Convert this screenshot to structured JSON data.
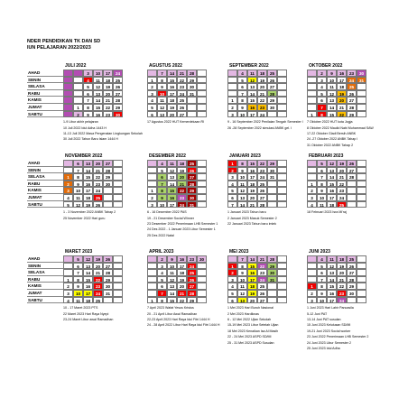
{
  "header": {
    "line1": "NDER PENDIDIKAN TK DAN SD",
    "line2": "IUN PELAJARAN  2022/2023"
  },
  "days": [
    "AHAD",
    "SENIN",
    "SELASA",
    "RABU",
    "KAMIS",
    "JUMAT",
    "SABTU"
  ],
  "colors": {
    "w": "#ffffff",
    "s": "#e3b7e3",
    "m": "#b34db3",
    "r": "#f00000",
    "d": "#a00000",
    "o": "#ffc000",
    "g": "#aad36b",
    "y": "#ffff00",
    "p": "#c04080",
    "t": "#e36c09"
  },
  "months": [
    {
      "name": "JULI 2022",
      "rows": [
        [
          "",
          "",
          "3",
          "10",
          "17",
          "24",
          "31"
        ],
        [
          "",
          "",
          "4",
          "11",
          "18",
          "25",
          ""
        ],
        [
          "",
          "",
          "5",
          "12",
          "19",
          "26",
          ""
        ],
        [
          "",
          "",
          "6",
          "13",
          "20",
          "27",
          ""
        ],
        [
          "",
          "",
          "7",
          "14",
          "21",
          "28",
          ""
        ],
        [
          "",
          "1",
          "8",
          "15",
          "22",
          "29",
          ""
        ],
        [
          "",
          "2",
          "9",
          "16",
          "23",
          "30",
          ""
        ]
      ],
      "notes": [
        "1-9 Libur akhir pelajaran",
        "10 Juli 2022 Idul Adha 1443 H",
        "11-13 Juli 2022 Masa Pengenalan Lingkungan Sekolah",
        "30 Juli 2022 Tahun Baru Islam 1444 H"
      ]
    },
    {
      "name": "AGUSTUS 2022",
      "rows": [
        [
          "",
          "7",
          "14",
          "21",
          "28",
          ""
        ],
        [
          "1",
          "8",
          "15",
          "22",
          "29",
          ""
        ],
        [
          "2",
          "9",
          "16",
          "23",
          "30",
          ""
        ],
        [
          "3",
          "10",
          "17",
          "24",
          "31",
          ""
        ],
        [
          "4",
          "11",
          "18",
          "25",
          "",
          ""
        ],
        [
          "5",
          "12",
          "19",
          "26",
          "",
          ""
        ],
        [
          "6",
          "13",
          "20",
          "27",
          "",
          ""
        ]
      ],
      "notes": [
        "17 Agustus 2022 HUT Kemerdekaan RI"
      ]
    },
    {
      "name": "SEPTEMBER 2022",
      "rows": [
        [
          "",
          "4",
          "11",
          "18",
          "25",
          ""
        ],
        [
          "",
          "5",
          "12",
          "19",
          "26",
          ""
        ],
        [
          "",
          "6",
          "13",
          "20",
          "27",
          ""
        ],
        [
          "",
          "7",
          "14",
          "21",
          "28",
          ""
        ],
        [
          "1",
          "8",
          "15",
          "22",
          "29",
          ""
        ],
        [
          "2",
          "9",
          "16",
          "23",
          "30",
          ""
        ],
        [
          "3",
          "10",
          "17",
          "24",
          "",
          ""
        ]
      ],
      "notes": [
        "9 - 16 September 2022 Penilaian Tengah Semester I",
        "26 -28 September 2022 simulasi ANBK gel. I"
      ]
    },
    {
      "name": "OKTOBER 2022",
      "rows": [
        [
          "",
          "2",
          "9",
          "16",
          "23",
          "30"
        ],
        [
          "",
          "3",
          "10",
          "17",
          "24",
          "31"
        ],
        [
          "",
          "4",
          "11",
          "18",
          "25",
          ""
        ],
        [
          "",
          "5",
          "12",
          "19",
          "26",
          ""
        ],
        [
          "",
          "6",
          "13",
          "20",
          "27",
          ""
        ],
        [
          "",
          "7",
          "14",
          "21",
          "28",
          ""
        ],
        [
          "1",
          "8",
          "15",
          "22",
          "29",
          ""
        ]
      ],
      "notes": [
        "7 Oktober 2022 HUT kota Jogja",
        "8 Oktober 2022 Maulid Nabi Muhammad SAW",
        "17-22 Oktober Gladi Bersih ANBK",
        "24 -27 Oktober 2022 ANBK Tahap I",
        "31 Oktober 2022 ANBK Tahap 2"
      ]
    },
    {
      "name": "NOVEMBER 2022",
      "rows": [
        [
          "",
          "6",
          "13",
          "20",
          "27",
          ""
        ],
        [
          "",
          "7",
          "14",
          "21",
          "28",
          ""
        ],
        [
          "1",
          "8",
          "15",
          "22",
          "29",
          ""
        ],
        [
          "2",
          "9",
          "16",
          "23",
          "30",
          ""
        ],
        [
          "3",
          "10",
          "17",
          "24",
          "",
          ""
        ],
        [
          "4",
          "11",
          "18",
          "25",
          "",
          ""
        ],
        [
          "5",
          "12",
          "19",
          "26",
          "",
          ""
        ]
      ],
      "notes": [
        "1 - 3 November 2022 ANBK Tahap 2",
        "25 November 2022 Hari guru"
      ]
    },
    {
      "name": "DESEMBER 2022",
      "rows": [
        [
          "",
          "4",
          "11",
          "18",
          "25",
          ""
        ],
        [
          "",
          "5",
          "12",
          "19",
          "26",
          ""
        ],
        [
          "",
          "6",
          "13",
          "20",
          "27",
          ""
        ],
        [
          "",
          "7",
          "14",
          "21",
          "28",
          ""
        ],
        [
          "1",
          "8",
          "15",
          "22",
          "29",
          ""
        ],
        [
          "2",
          "9",
          "16",
          "23",
          "30",
          ""
        ],
        [
          "3",
          "10",
          "17",
          "24",
          "31",
          ""
        ]
      ],
      "notes": [
        "6 - 16 Desember 2022 PAS",
        "19 - 21 Desember Social Winner",
        "23 Desember 2022 Penerimaan LHB Semester 1",
        "24 Des 2022 - 1 Januari 2023 Libur Semester 1",
        "25 Des 2022 Natal"
      ]
    },
    {
      "name": "JANUARI 2023",
      "rows": [
        [
          "1",
          "8",
          "15",
          "22",
          "29",
          ""
        ],
        [
          "2",
          "9",
          "16",
          "23",
          "30",
          ""
        ],
        [
          "3",
          "10",
          "17",
          "24",
          "31",
          ""
        ],
        [
          "4",
          "11",
          "18",
          "25",
          "",
          ""
        ],
        [
          "5",
          "12",
          "19",
          "26",
          "",
          ""
        ],
        [
          "6",
          "13",
          "20",
          "27",
          "",
          ""
        ],
        [
          "7",
          "14",
          "21",
          "28",
          "",
          ""
        ]
      ],
      "notes": [
        "1 Januari 2023 Tahun baru",
        "2 Januari 2023 Masuk Semester 2",
        "22 Januari 2023 Tahun baru imlek"
      ]
    },
    {
      "name": "FEBRUARI 2023",
      "rows": [
        [
          "",
          "5",
          "12",
          "19",
          "26",
          ""
        ],
        [
          "",
          "6",
          "13",
          "20",
          "27",
          ""
        ],
        [
          "",
          "7",
          "14",
          "21",
          "28",
          ""
        ],
        [
          "1",
          "8",
          "15",
          "22",
          "",
          ""
        ],
        [
          "2",
          "9",
          "16",
          "23",
          "",
          ""
        ],
        [
          "3",
          "10",
          "17",
          "24",
          "",
          ""
        ],
        [
          "4",
          "11",
          "18",
          "25",
          "",
          ""
        ]
      ],
      "notes": [
        "18 Februari 2023 Isra Mi'raj"
      ]
    },
    {
      "name": "MARET 2023",
      "rows": [
        [
          "",
          "5",
          "12",
          "19",
          "26",
          ""
        ],
        [
          "",
          "6",
          "13",
          "20",
          "27",
          ""
        ],
        [
          "",
          "7",
          "14",
          "21",
          "28",
          ""
        ],
        [
          "1",
          "8",
          "15",
          "22",
          "29",
          ""
        ],
        [
          "2",
          "9",
          "16",
          "23",
          "30",
          ""
        ],
        [
          "3",
          "10",
          "17",
          "24",
          "31",
          ""
        ],
        [
          "4",
          "11",
          "18",
          "25",
          "",
          ""
        ]
      ],
      "notes": [
        "10 - 17 Maret 2023 PTS",
        "22 Maret 2023 Hari Raya Nyepi",
        "23-24 Maret Libur awal Ramadhan"
      ]
    },
    {
      "name": "APRIL 2023",
      "rows": [
        [
          "",
          "2",
          "9",
          "16",
          "23",
          "30"
        ],
        [
          "",
          "3",
          "10",
          "17",
          "24",
          ""
        ],
        [
          "",
          "4",
          "11",
          "18",
          "25",
          ""
        ],
        [
          "",
          "5",
          "12",
          "19",
          "26",
          ""
        ],
        [
          "",
          "6",
          "13",
          "20",
          "27",
          ""
        ],
        [
          "",
          "7",
          "14",
          "21",
          "28",
          ""
        ],
        [
          "1",
          "8",
          "15",
          "22",
          "29",
          ""
        ]
      ],
      "notes": [
        "7 April 2023 Wafat Yesus Kristus",
        "20 - 21 April Libur Awal Ramadhan",
        "22-23 April 2023 Hari Raya Idul Fitri 1444 H",
        "24 - 28 April 2022 Libur Hari Raya Idul Fitri 1444 H"
      ]
    },
    {
      "name": "MEI 2023",
      "rows": [
        [
          "",
          "7",
          "14",
          "21",
          "28",
          ""
        ],
        [
          "1",
          "8",
          "15",
          "22",
          "29",
          ""
        ],
        [
          "2",
          "9",
          "16",
          "23",
          "30",
          ""
        ],
        [
          "3",
          "10",
          "17",
          "24",
          "31",
          ""
        ],
        [
          "4",
          "11",
          "18",
          "25",
          "",
          ""
        ],
        [
          "5",
          "12",
          "19",
          "26",
          "",
          ""
        ],
        [
          "6",
          "13",
          "20",
          "27",
          "",
          ""
        ]
      ],
      "notes": [
        "1 Mei 2023 Hari Buruh Nasional",
        "2 Mei 2023 Hardiknas",
        "6 - 12 Mei 2022 Ujian Sekolah",
        "15-19 Mei 2023 Libur Setelah Ujian",
        "18 Mei 2023 Kenaikan Isa Al Masih",
        "22 - 24 Mei 2023 ASPD SD/MI",
        "25 - 31 Mei 2023 ASPD Susulan"
      ]
    },
    {
      "name": "JUNI 2023",
      "rows": [
        [
          "",
          "4",
          "11",
          "18",
          "25",
          ""
        ],
        [
          "",
          "5",
          "12",
          "19",
          "26",
          ""
        ],
        [
          "",
          "6",
          "13",
          "20",
          "27",
          ""
        ],
        [
          "",
          "7",
          "14",
          "21",
          "28",
          ""
        ],
        [
          "1",
          "8",
          "15",
          "22",
          "29",
          ""
        ],
        [
          "2",
          "9",
          "16",
          "23",
          "30",
          ""
        ],
        [
          "3",
          "10",
          "17",
          "24",
          "",
          ""
        ]
      ],
      "notes": [
        "1 Juni 2023 Hari Lahir Pancasila",
        "5-12 Juni PAT",
        "13-14 Juni PAT susulan",
        "15 Juni 2023 Kelulusan SD/MI",
        "19-21 Juni 2023 Social worker",
        "23 Juni 2022 Penerimaan LHB Semester 2",
        "24 Juni 2023 Libur Semester 2",
        "25 Juni 2023 Idul Adha"
      ]
    }
  ]
}
